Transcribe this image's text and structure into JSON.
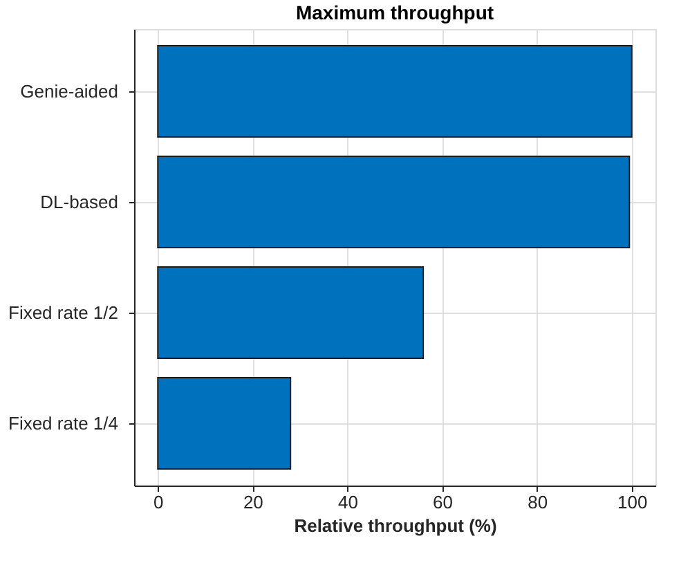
{
  "chart_data": {
    "type": "bar",
    "orientation": "horizontal",
    "title": "Maximum throughput",
    "xlabel": "Relative throughput (%)",
    "categories": [
      "Genie-aided",
      "DL-based",
      "Fixed rate 1/2",
      "Fixed rate 1/4"
    ],
    "values": [
      100,
      99.5,
      56,
      28
    ],
    "color": "#0072bd",
    "xlim": [
      -5,
      105
    ],
    "xticks": [
      0,
      20,
      40,
      60,
      80,
      100
    ],
    "grid": true
  }
}
